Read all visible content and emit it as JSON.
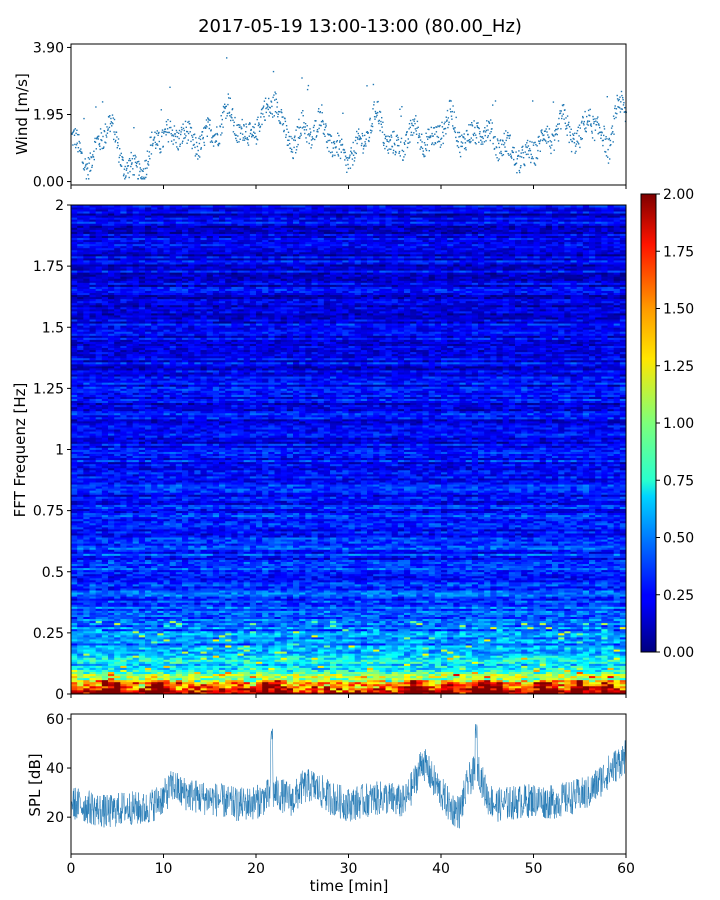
{
  "title": "2017-05-19 13:00-13:00 (80.00_Hz)",
  "chart_data": [
    {
      "type": "scatter",
      "name": "wind",
      "ylabel": "Wind [m/s]",
      "ylim": [
        -0.1,
        4.0
      ],
      "yticks": [
        0.0,
        1.95,
        3.9
      ],
      "ytick_labels": [
        "0.00",
        "1.95",
        "3.90"
      ],
      "xlim": [
        0,
        60
      ],
      "color": "#1f77b4",
      "profile": [
        {
          "t": 0,
          "v": 1.3
        },
        {
          "t": 1,
          "v": 0.8
        },
        {
          "t": 2,
          "v": 0.5
        },
        {
          "t": 3,
          "v": 1.2
        },
        {
          "t": 4,
          "v": 1.8
        },
        {
          "t": 5,
          "v": 1.0
        },
        {
          "t": 6,
          "v": 0.4
        },
        {
          "t": 7,
          "v": 0.3
        },
        {
          "t": 8,
          "v": 0.5
        },
        {
          "t": 9,
          "v": 1.2
        },
        {
          "t": 10,
          "v": 1.4
        },
        {
          "t": 11,
          "v": 1.3
        },
        {
          "t": 12,
          "v": 1.5
        },
        {
          "t": 13,
          "v": 1.1
        },
        {
          "t": 14,
          "v": 1.2
        },
        {
          "t": 15,
          "v": 1.4
        },
        {
          "t": 16,
          "v": 1.6
        },
        {
          "t": 17,
          "v": 2.2
        },
        {
          "t": 18,
          "v": 1.5
        },
        {
          "t": 19,
          "v": 1.3
        },
        {
          "t": 20,
          "v": 1.6
        },
        {
          "t": 21,
          "v": 2.0
        },
        {
          "t": 22,
          "v": 2.5
        },
        {
          "t": 23,
          "v": 1.4
        },
        {
          "t": 24,
          "v": 1.1
        },
        {
          "t": 25,
          "v": 1.6
        },
        {
          "t": 26,
          "v": 1.4
        },
        {
          "t": 27,
          "v": 1.8
        },
        {
          "t": 28,
          "v": 1.2
        },
        {
          "t": 29,
          "v": 0.8
        },
        {
          "t": 30,
          "v": 0.7
        },
        {
          "t": 31,
          "v": 1.0
        },
        {
          "t": 32,
          "v": 1.5
        },
        {
          "t": 33,
          "v": 2.0
        },
        {
          "t": 34,
          "v": 1.3
        },
        {
          "t": 35,
          "v": 0.9
        },
        {
          "t": 36,
          "v": 1.2
        },
        {
          "t": 37,
          "v": 1.5
        },
        {
          "t": 38,
          "v": 1.3
        },
        {
          "t": 39,
          "v": 1.1
        },
        {
          "t": 40,
          "v": 1.6
        },
        {
          "t": 41,
          "v": 1.9
        },
        {
          "t": 42,
          "v": 1.3
        },
        {
          "t": 43,
          "v": 1.2
        },
        {
          "t": 44,
          "v": 1.6
        },
        {
          "t": 45,
          "v": 1.4
        },
        {
          "t": 46,
          "v": 1.2
        },
        {
          "t": 47,
          "v": 1.0
        },
        {
          "t": 48,
          "v": 0.8
        },
        {
          "t": 49,
          "v": 0.6
        },
        {
          "t": 50,
          "v": 1.0
        },
        {
          "t": 51,
          "v": 1.3
        },
        {
          "t": 52,
          "v": 1.2
        },
        {
          "t": 53,
          "v": 1.8
        },
        {
          "t": 54,
          "v": 1.4
        },
        {
          "t": 55,
          "v": 1.2
        },
        {
          "t": 56,
          "v": 2.0
        },
        {
          "t": 57,
          "v": 1.4
        },
        {
          "t": 58,
          "v": 1.0
        },
        {
          "t": 59,
          "v": 2.2
        },
        {
          "t": 60,
          "v": 2.0
        }
      ]
    },
    {
      "type": "heatmap",
      "name": "spectrogram",
      "ylabel": "FFT Frequenz [Hz]",
      "ylim": [
        0,
        2
      ],
      "xlim": [
        0,
        60
      ],
      "yticks": [
        0,
        0.25,
        0.5,
        0.75,
        1,
        1.25,
        1.5,
        1.75,
        2
      ],
      "ytick_labels": [
        "0",
        "0.25",
        "0.5",
        "0.75",
        "1",
        "1.25",
        "1.5",
        "1.75",
        "2"
      ],
      "colormap": "jet",
      "colorbar": {
        "min": 0.0,
        "max": 2.0,
        "ticks": [
          0.0,
          0.25,
          0.5,
          0.75,
          1.0,
          1.25,
          1.5,
          1.75,
          2.0
        ],
        "tick_labels": [
          "0.00",
          "0.25",
          "0.50",
          "0.75",
          "1.00",
          "1.25",
          "1.50",
          "1.75",
          "2.00"
        ]
      },
      "freq_profile": [
        {
          "f": 0.0,
          "amp": 1.85
        },
        {
          "f": 0.05,
          "amp": 1.2
        },
        {
          "f": 0.1,
          "amp": 0.8
        },
        {
          "f": 0.2,
          "amp": 0.55
        },
        {
          "f": 0.35,
          "amp": 0.4
        },
        {
          "f": 0.6,
          "amp": 0.32
        },
        {
          "f": 1.0,
          "amp": 0.26
        },
        {
          "f": 1.5,
          "amp": 0.22
        },
        {
          "f": 2.0,
          "amp": 0.2
        }
      ],
      "hotspots_min": [
        4,
        5,
        9,
        10,
        21,
        22,
        37,
        41,
        44,
        45,
        46,
        51,
        52,
        55,
        58
      ]
    },
    {
      "type": "line",
      "name": "spl",
      "ylabel": "SPL [dB]",
      "xlabel": "time [min]",
      "ylim": [
        5,
        62
      ],
      "yticks": [
        20,
        40,
        60
      ],
      "ytick_labels": [
        "20",
        "40",
        "60"
      ],
      "xlim": [
        0,
        60
      ],
      "xticks": [
        0,
        10,
        20,
        30,
        40,
        50,
        60
      ],
      "xtick_labels": [
        "0",
        "10",
        "20",
        "30",
        "40",
        "50",
        "60"
      ],
      "color": "#1f77b4",
      "profile": [
        {
          "t": 0,
          "v": 26
        },
        {
          "t": 2,
          "v": 24
        },
        {
          "t": 4,
          "v": 22
        },
        {
          "t": 6,
          "v": 24
        },
        {
          "t": 8,
          "v": 23
        },
        {
          "t": 10,
          "v": 28
        },
        {
          "t": 11,
          "v": 33
        },
        {
          "t": 12,
          "v": 30
        },
        {
          "t": 14,
          "v": 28
        },
        {
          "t": 16,
          "v": 27
        },
        {
          "t": 18,
          "v": 25
        },
        {
          "t": 20,
          "v": 26
        },
        {
          "t": 22,
          "v": 30
        },
        {
          "t": 24,
          "v": 27
        },
        {
          "t": 25,
          "v": 32
        },
        {
          "t": 26,
          "v": 33
        },
        {
          "t": 28,
          "v": 28
        },
        {
          "t": 30,
          "v": 25
        },
        {
          "t": 32,
          "v": 27
        },
        {
          "t": 34,
          "v": 28
        },
        {
          "t": 36,
          "v": 26
        },
        {
          "t": 37,
          "v": 33
        },
        {
          "t": 38,
          "v": 43
        },
        {
          "t": 39,
          "v": 36
        },
        {
          "t": 40,
          "v": 30
        },
        {
          "t": 41,
          "v": 24
        },
        {
          "t": 42,
          "v": 22
        },
        {
          "t": 43,
          "v": 35
        },
        {
          "t": 44,
          "v": 40
        },
        {
          "t": 45,
          "v": 28
        },
        {
          "t": 46,
          "v": 25
        },
        {
          "t": 48,
          "v": 26
        },
        {
          "t": 50,
          "v": 27
        },
        {
          "t": 52,
          "v": 26
        },
        {
          "t": 54,
          "v": 28
        },
        {
          "t": 56,
          "v": 30
        },
        {
          "t": 58,
          "v": 38
        },
        {
          "t": 60,
          "v": 45
        }
      ],
      "spikes": [
        {
          "t": 21.7,
          "v": 57
        },
        {
          "t": 43.8,
          "v": 58
        }
      ]
    }
  ]
}
